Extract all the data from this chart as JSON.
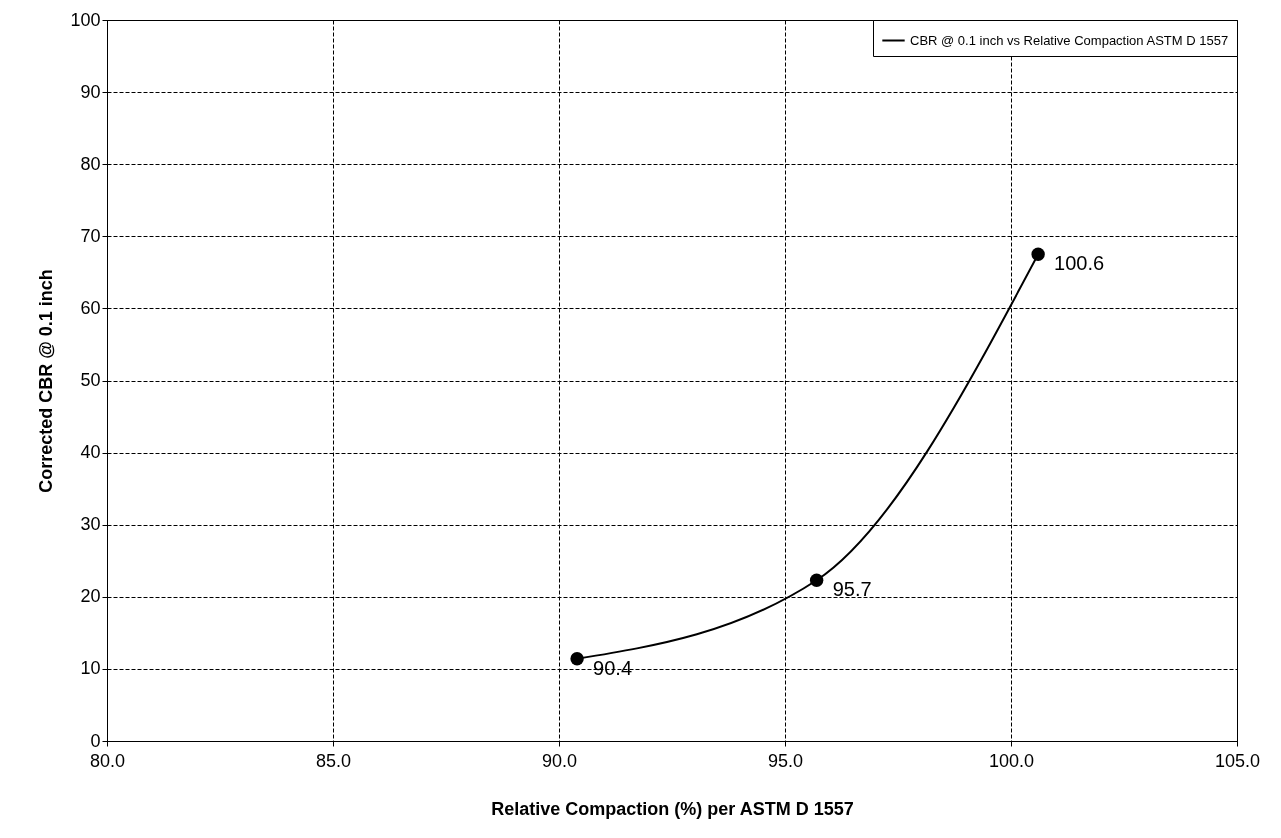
{
  "chart_data": {
    "type": "line",
    "xlabel": "Relative Compaction (%) per ASTM D 1557",
    "ylabel": "Corrected CBR @ 0.1 inch",
    "x": [
      90.4,
      95.7,
      100.6
    ],
    "series": [
      {
        "name": "CBR @ 0.1 inch vs Relative Compaction ASTM D 1557",
        "color": "#000000",
        "values": [
          11.4,
          22.3,
          67.5
        ]
      }
    ],
    "annotations": [
      {
        "text": "90.4",
        "x": 90.4,
        "y": 11.4
      },
      {
        "text": "95.7",
        "x": 95.7,
        "y": 22.3
      },
      {
        "text": "100.6",
        "x": 100.6,
        "y": 67.5
      }
    ],
    "xlim": [
      80,
      105
    ],
    "xticks": [
      {
        "value": 80,
        "label": "80.0"
      },
      {
        "value": 85,
        "label": "85.0"
      },
      {
        "value": 90,
        "label": "90.0"
      },
      {
        "value": 95,
        "label": "95.0"
      },
      {
        "value": 100,
        "label": "100.0"
      },
      {
        "value": 105,
        "label": "105.0"
      }
    ],
    "ylim": [
      0,
      100
    ],
    "yticks": [
      0,
      10,
      20,
      30,
      40,
      50,
      60,
      70,
      80,
      90,
      100
    ],
    "grid": true,
    "legend": "top right",
    "marker": "circle",
    "line_style": "solid"
  }
}
